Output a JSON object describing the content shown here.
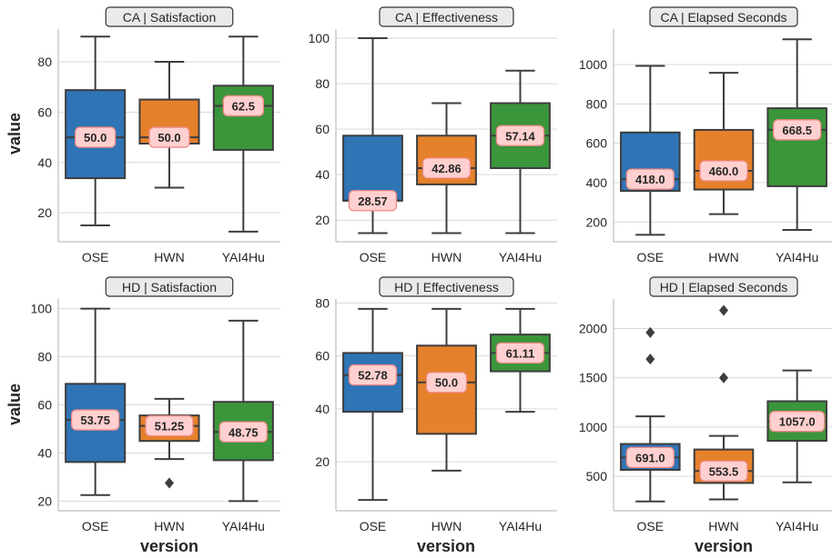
{
  "figure": {
    "ylabel": "value",
    "xlabel": "version"
  },
  "colors": {
    "OSE": "#2f74b5",
    "HWN": "#e5812b",
    "YAI4Hu": "#3b953b",
    "grid": "#d9d9d9",
    "box_edge": "#3d3d3d",
    "label_bg": "#ffd0cf",
    "label_edge": "#f08a85",
    "title_bg": "#eaeaea"
  },
  "chart_data": [
    {
      "type": "box",
      "title": "CA | Satisfaction",
      "categories": [
        "OSE",
        "HWN",
        "YAI4Hu"
      ],
      "yticks": [
        20,
        40,
        60,
        80
      ],
      "ylim": [
        8.5,
        93
      ],
      "boxes": [
        {
          "whislo": 15,
          "q1": 33.75,
          "median": 50.0,
          "q3": 68.75,
          "whishi": 90,
          "label": "50.0",
          "fliers": []
        },
        {
          "whislo": 30,
          "q1": 47.5,
          "median": 50.0,
          "q3": 65,
          "whishi": 80,
          "label": "50.0",
          "fliers": []
        },
        {
          "whislo": 12.5,
          "q1": 45,
          "median": 62.5,
          "q3": 70.5,
          "whishi": 90,
          "label": "62.5",
          "fliers": []
        }
      ]
    },
    {
      "type": "box",
      "title": "CA | Effectiveness",
      "categories": [
        "OSE",
        "HWN",
        "YAI4Hu"
      ],
      "yticks": [
        20,
        40,
        60,
        80,
        100
      ],
      "ylim": [
        10.5,
        104
      ],
      "boxes": [
        {
          "whislo": 14.29,
          "q1": 28.57,
          "median": 28.57,
          "q3": 57.14,
          "whishi": 100,
          "label": "28.57",
          "fliers": []
        },
        {
          "whislo": 14.29,
          "q1": 35.71,
          "median": 42.86,
          "q3": 57.14,
          "whishi": 71.43,
          "label": "42.86",
          "fliers": []
        },
        {
          "whislo": 14.29,
          "q1": 42.86,
          "median": 57.14,
          "q3": 71.43,
          "whishi": 85.71,
          "label": "57.14",
          "fliers": []
        }
      ]
    },
    {
      "type": "box",
      "title": "CA | Elapsed Seconds",
      "categories": [
        "OSE",
        "HWN",
        "YAI4Hu"
      ],
      "yticks": [
        200,
        400,
        600,
        800,
        1000
      ],
      "ylim": [
        100,
        1180
      ],
      "boxes": [
        {
          "whislo": 135,
          "q1": 358,
          "median": 418.0,
          "q3": 655,
          "whishi": 993,
          "label": "418.0",
          "fliers": []
        },
        {
          "whislo": 240,
          "q1": 365,
          "median": 460.0,
          "q3": 668,
          "whishi": 958,
          "label": "460.0",
          "fliers": []
        },
        {
          "whislo": 160,
          "q1": 382,
          "median": 668.5,
          "q3": 778,
          "whishi": 1128,
          "label": "668.5",
          "fliers": []
        }
      ]
    },
    {
      "type": "box",
      "title": "HD | Satisfaction",
      "categories": [
        "OSE",
        "HWN",
        "YAI4Hu"
      ],
      "yticks": [
        20,
        40,
        60,
        80,
        100
      ],
      "ylim": [
        16,
        104
      ],
      "boxes": [
        {
          "whislo": 22.5,
          "q1": 36.25,
          "median": 53.75,
          "q3": 68.75,
          "whishi": 100,
          "label": "53.75",
          "fliers": []
        },
        {
          "whislo": 37.5,
          "q1": 45,
          "median": 51.25,
          "q3": 55.6,
          "whishi": 62.5,
          "label": "51.25",
          "fliers": [
            27.5
          ]
        },
        {
          "whislo": 20,
          "q1": 37,
          "median": 48.75,
          "q3": 61.25,
          "whishi": 95,
          "label": "48.75",
          "fliers": []
        }
      ]
    },
    {
      "type": "box",
      "title": "HD | Effectiveness",
      "categories": [
        "OSE",
        "HWN",
        "YAI4Hu"
      ],
      "yticks": [
        20,
        40,
        60,
        80
      ],
      "ylim": [
        1.5,
        81.5
      ],
      "boxes": [
        {
          "whislo": 5.56,
          "q1": 38.89,
          "median": 52.78,
          "q3": 61.11,
          "whishi": 77.78,
          "label": "52.78",
          "fliers": []
        },
        {
          "whislo": 16.67,
          "q1": 30.56,
          "median": 50.0,
          "q3": 63.89,
          "whishi": 77.78,
          "label": "50.0",
          "fliers": []
        },
        {
          "whislo": 38.89,
          "q1": 54.17,
          "median": 61.11,
          "q3": 68.06,
          "whishi": 77.78,
          "label": "61.11",
          "fliers": []
        }
      ]
    },
    {
      "type": "box",
      "title": "HD | Elapsed Seconds",
      "categories": [
        "OSE",
        "HWN",
        "YAI4Hu"
      ],
      "yticks": [
        500,
        1000,
        1500,
        2000
      ],
      "ylim": [
        150,
        2300
      ],
      "boxes": [
        {
          "whislo": 245,
          "q1": 565,
          "median": 691.0,
          "q3": 828,
          "whishi": 1108,
          "label": "691.0",
          "fliers": [
            1690,
            1960
          ]
        },
        {
          "whislo": 265,
          "q1": 432,
          "median": 553.5,
          "q3": 772,
          "whishi": 910,
          "label": "553.5",
          "fliers": [
            1500,
            2185
          ]
        },
        {
          "whislo": 438,
          "q1": 860,
          "median": 1057.0,
          "q3": 1262,
          "whishi": 1575,
          "label": "1057.0",
          "fliers": []
        }
      ]
    }
  ]
}
